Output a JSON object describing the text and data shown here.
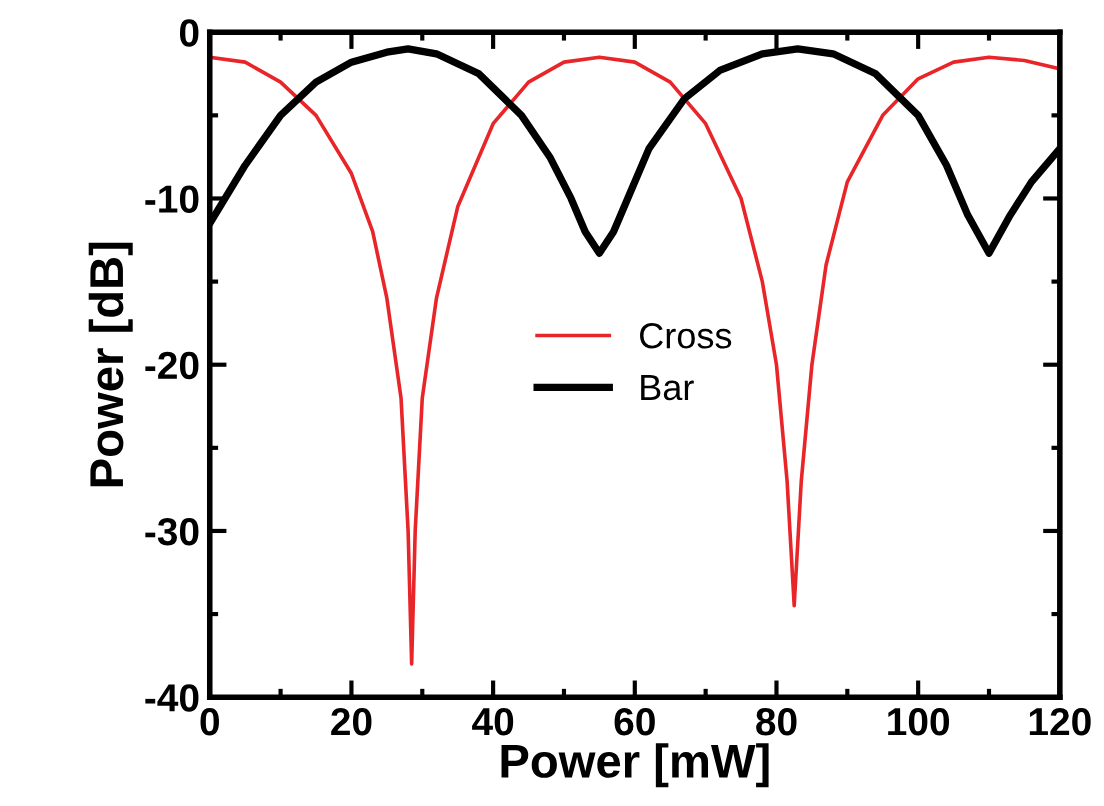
{
  "chart_data": {
    "type": "line",
    "xlabel": "Power [mW]",
    "ylabel": "Power [dB]",
    "xlim": [
      0,
      120
    ],
    "ylim": [
      -40,
      0
    ],
    "xticks": [
      0,
      20,
      40,
      60,
      80,
      100,
      120
    ],
    "yticks": [
      -40,
      -30,
      -20,
      -10,
      0
    ],
    "grid": false,
    "legend": "center",
    "marker": "none",
    "line_style": "solid",
    "series": [
      {
        "name": "Cross",
        "color": "#e8262a",
        "x": [
          0,
          5,
          10,
          15,
          20,
          23,
          25,
          27,
          28,
          28.5,
          29,
          30,
          32,
          35,
          40,
          45,
          50,
          55,
          60,
          65,
          70,
          75,
          78,
          80,
          81.5,
          82.5,
          83.5,
          85,
          87,
          90,
          95,
          100,
          105,
          110,
          115,
          120
        ],
        "values": [
          -1.5,
          -1.8,
          -3,
          -5,
          -8.5,
          -12,
          -16,
          -22,
          -30,
          -38,
          -30,
          -22,
          -16,
          -10.5,
          -5.5,
          -3,
          -1.8,
          -1.5,
          -1.8,
          -3,
          -5.5,
          -10,
          -15,
          -20,
          -27,
          -34.5,
          -27,
          -20,
          -14,
          -9,
          -5,
          -2.8,
          -1.8,
          -1.5,
          -1.7,
          -2.2
        ]
      },
      {
        "name": "Bar",
        "color": "#000000",
        "x": [
          0,
          5,
          10,
          15,
          20,
          25,
          28,
          32,
          38,
          44,
          48,
          51,
          53,
          55,
          57,
          59,
          62,
          67,
          72,
          78,
          83,
          88,
          94,
          100,
          104,
          107,
          110,
          113,
          116,
          120
        ],
        "values": [
          -11.5,
          -8,
          -5,
          -3,
          -1.8,
          -1.2,
          -1,
          -1.3,
          -2.5,
          -5,
          -7.5,
          -10,
          -12,
          -13.3,
          -12,
          -10,
          -7,
          -4,
          -2.3,
          -1.3,
          -1,
          -1.3,
          -2.5,
          -5,
          -8,
          -11,
          -13.3,
          -11,
          -9,
          -7
        ]
      }
    ]
  }
}
